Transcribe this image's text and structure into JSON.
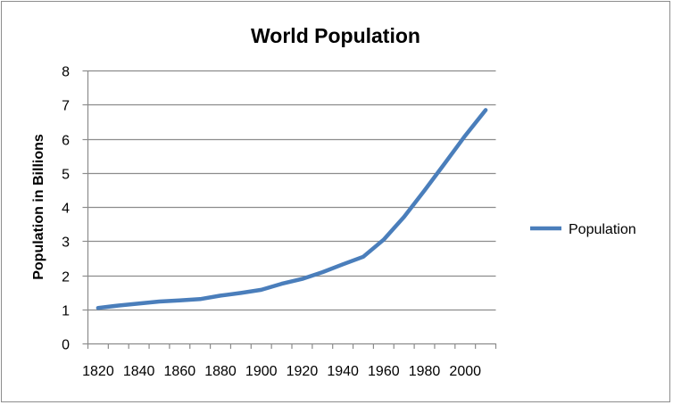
{
  "chart_data": {
    "type": "line",
    "title": "World Population",
    "xlabel": "",
    "ylabel": "Population in Billions",
    "categories": [
      1820,
      1830,
      1840,
      1850,
      1860,
      1870,
      1880,
      1890,
      1900,
      1910,
      1920,
      1930,
      1940,
      1950,
      1960,
      1970,
      1980,
      1990,
      2000,
      2010
    ],
    "x_tick_labels": [
      "1820",
      "1840",
      "1860",
      "1880",
      "1900",
      "1920",
      "1940",
      "1960",
      "1980",
      "2000"
    ],
    "y_tick_labels": [
      "0",
      "1",
      "2",
      "3",
      "4",
      "5",
      "6",
      "7",
      "8"
    ],
    "ylim": [
      0,
      8
    ],
    "grid": true,
    "legend_position": "right",
    "series": [
      {
        "name": "Population",
        "color": "#4a7ebb",
        "values": [
          1.04,
          1.11,
          1.17,
          1.23,
          1.26,
          1.3,
          1.4,
          1.48,
          1.57,
          1.75,
          1.89,
          2.09,
          2.32,
          2.54,
          3.04,
          3.71,
          4.48,
          5.28,
          6.09,
          6.84
        ]
      }
    ]
  }
}
